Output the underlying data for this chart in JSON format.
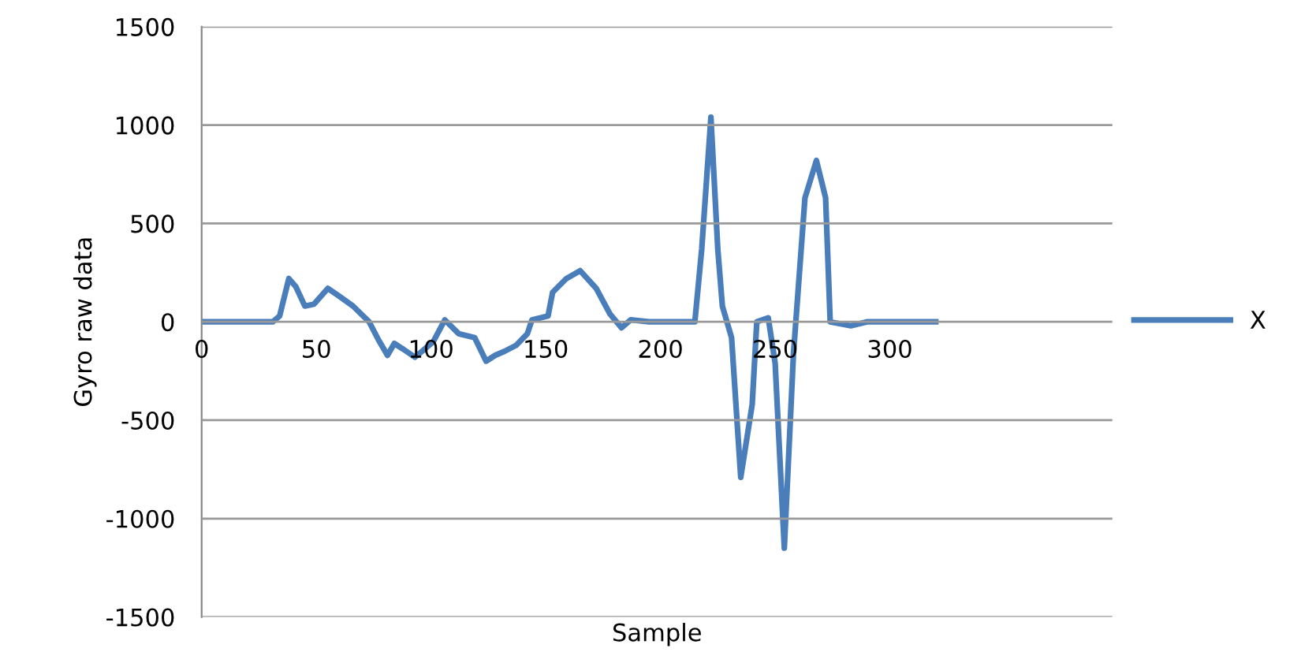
{
  "chart_data": {
    "type": "line",
    "xlabel": "Sample",
    "ylabel": "Gyro raw data",
    "xlim": [
      0,
      397
    ],
    "ylim": [
      -1500,
      1500
    ],
    "xticks": [
      0,
      50,
      100,
      150,
      200,
      250,
      300
    ],
    "yticks": [
      -1500,
      -1000,
      -500,
      0,
      500,
      1000,
      1500
    ],
    "grid": "y",
    "legend": "right",
    "marker": "none",
    "line_style": "solid",
    "series": [
      {
        "name": "X",
        "color": "#4a7ebb",
        "x": [
          0,
          10,
          20,
          31,
          34,
          38,
          41,
          45,
          49,
          55,
          60,
          66,
          73,
          77,
          81,
          84,
          88,
          93,
          97,
          101,
          106,
          112,
          119,
          124,
          128,
          132,
          137,
          142,
          144,
          151,
          153,
          159,
          165,
          172,
          178,
          183,
          187,
          195,
          205,
          215,
          218,
          222,
          225,
          227,
          231,
          235,
          240,
          242,
          247,
          250,
          254,
          258,
          263,
          268,
          272,
          274,
          283,
          290,
          300,
          320
        ],
        "values": [
          0,
          0,
          0,
          0,
          30,
          220,
          180,
          80,
          90,
          170,
          130,
          80,
          0,
          -90,
          -170,
          -110,
          -140,
          -180,
          -140,
          -100,
          10,
          -60,
          -80,
          -200,
          -170,
          -150,
          -120,
          -60,
          10,
          30,
          150,
          220,
          260,
          170,
          40,
          -30,
          10,
          0,
          0,
          0,
          370,
          1040,
          370,
          80,
          -80,
          -790,
          -420,
          0,
          20,
          -210,
          -1150,
          -160,
          630,
          820,
          630,
          0,
          -20,
          0,
          0,
          0
        ]
      }
    ]
  }
}
